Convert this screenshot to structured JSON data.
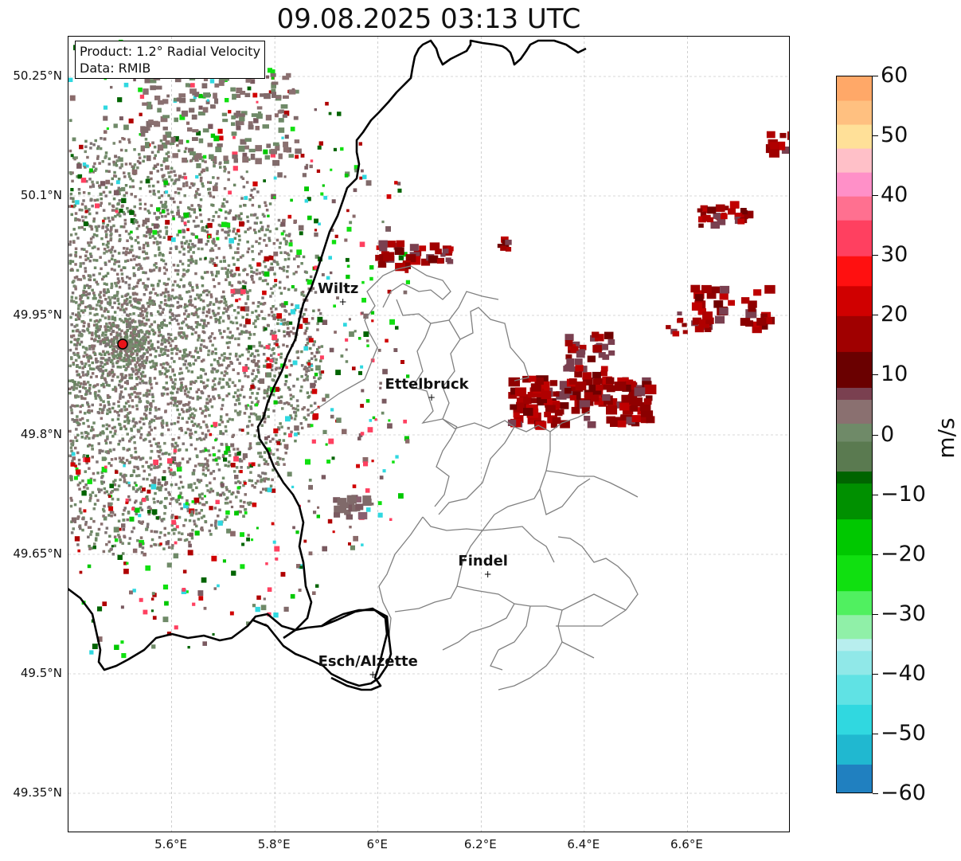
{
  "title": "09.08.2025 03:13 UTC",
  "info_box": {
    "product_line": "Product: 1.2° Radial Velocity",
    "data_line": "Data: RMIB"
  },
  "map": {
    "lon_range": [
      5.4,
      6.8
    ],
    "lat_range": [
      49.3,
      50.3
    ],
    "lat_ticks": [
      {
        "value": 50.25,
        "label": "50.25°N"
      },
      {
        "value": 50.1,
        "label": "50.1°N"
      },
      {
        "value": 49.95,
        "label": "49.95°N"
      },
      {
        "value": 49.8,
        "label": "49.8°N"
      },
      {
        "value": 49.65,
        "label": "49.65°N"
      },
      {
        "value": 49.5,
        "label": "49.5°N"
      },
      {
        "value": 49.35,
        "label": "49.35°N"
      }
    ],
    "lon_ticks": [
      {
        "value": 5.6,
        "label": "5.6°E"
      },
      {
        "value": 5.8,
        "label": "5.8°E"
      },
      {
        "value": 6.0,
        "label": "6°E"
      },
      {
        "value": 6.2,
        "label": "6.2°E"
      },
      {
        "value": 6.4,
        "label": "6.4°E"
      },
      {
        "value": 6.6,
        "label": "6.6°E"
      }
    ],
    "gridlines": true,
    "radar_site": {
      "lon": 5.505,
      "lat": 49.914,
      "color": "#e8141a"
    },
    "cities": [
      {
        "name": "Wiltz",
        "lon": 5.932,
        "lat": 49.968
      },
      {
        "name": "Ettelbruck",
        "lon": 6.104,
        "lat": 49.848
      },
      {
        "name": "Findel",
        "lon": 6.213,
        "lat": 49.626
      },
      {
        "name": "Esch/Alzette",
        "lon": 5.99,
        "lat": 49.5
      }
    ],
    "colors": {
      "national_border": "#000000",
      "canton_border": "#808080",
      "gridline": "#b0b0b0"
    }
  },
  "colorbar": {
    "unit": "m/s",
    "min": -60,
    "max": 60,
    "ticks": [
      {
        "value": 60,
        "label": "60"
      },
      {
        "value": 50,
        "label": "50"
      },
      {
        "value": 40,
        "label": "40"
      },
      {
        "value": 30,
        "label": "30"
      },
      {
        "value": 20,
        "label": "20"
      },
      {
        "value": 10,
        "label": "10"
      },
      {
        "value": 0,
        "label": "0"
      },
      {
        "value": -10,
        "label": "−10"
      },
      {
        "value": -20,
        "label": "−20"
      },
      {
        "value": -30,
        "label": "−30"
      },
      {
        "value": -40,
        "label": "−40"
      },
      {
        "value": -50,
        "label": "−50"
      },
      {
        "value": -60,
        "label": "−60"
      }
    ],
    "stops": [
      {
        "value": -60,
        "color": "#2080c0"
      },
      {
        "value": -55,
        "color": "#20b8d0"
      },
      {
        "value": -50,
        "color": "#30d8e0"
      },
      {
        "value": -45,
        "color": "#60e2e4"
      },
      {
        "value": -40,
        "color": "#90e8e8"
      },
      {
        "value": -36,
        "color": "#b8eeee"
      },
      {
        "value": -34,
        "color": "#90f0a8"
      },
      {
        "value": -30,
        "color": "#50f060"
      },
      {
        "value": -26,
        "color": "#10e010"
      },
      {
        "value": -20,
        "color": "#00c800"
      },
      {
        "value": -14,
        "color": "#009000"
      },
      {
        "value": -8,
        "color": "#006400"
      },
      {
        "value": -6,
        "color": "#5a7a50"
      },
      {
        "value": -1,
        "color": "#6f8a68"
      },
      {
        "value": 2,
        "color": "#8a7070"
      },
      {
        "value": 6,
        "color": "#7a4050"
      },
      {
        "value": 8,
        "color": "#6a0000"
      },
      {
        "value": 14,
        "color": "#a00000"
      },
      {
        "value": 20,
        "color": "#d00000"
      },
      {
        "value": 25,
        "color": "#ff1010"
      },
      {
        "value": 30,
        "color": "#ff4060"
      },
      {
        "value": 36,
        "color": "#ff7090"
      },
      {
        "value": 40,
        "color": "#ff90c8"
      },
      {
        "value": 44,
        "color": "#ffc0c8"
      },
      {
        "value": 48,
        "color": "#ffe098"
      },
      {
        "value": 52,
        "color": "#ffc080"
      },
      {
        "value": 56,
        "color": "#ffa868"
      },
      {
        "value": 60,
        "color": "#ffa060"
      }
    ]
  }
}
